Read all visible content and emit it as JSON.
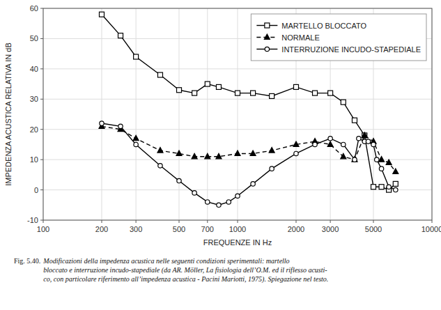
{
  "chart_data": {
    "type": "line",
    "xlabel": "FREQUENZE IN Hz",
    "ylabel": "IMPEDENZA ACUSTICA RELATIVA IN dB",
    "log": "x",
    "grid": true,
    "legend": "upper right",
    "xlim": [
      100,
      10000
    ],
    "xticks": [
      100,
      200,
      300,
      500,
      700,
      1000,
      2000,
      3000,
      5000,
      10000
    ],
    "ylim": [
      -10,
      60
    ],
    "yticks": [
      -10,
      0,
      10,
      20,
      30,
      40,
      50,
      60
    ],
    "series": [
      {
        "name": "MARTELLO BLOCCATO",
        "color": "#000000",
        "marker": "square",
        "line_style": "solid",
        "x": [
          200,
          250,
          300,
          400,
          500,
          600,
          700,
          800,
          1000,
          1200,
          1500,
          2000,
          2500,
          3000,
          3500,
          4000,
          4500,
          5000,
          5500,
          6000,
          6500
        ],
        "values": [
          58,
          51,
          44,
          38,
          33,
          32,
          35,
          34,
          32,
          32,
          31,
          34,
          32,
          32,
          29,
          23,
          18,
          1,
          1,
          0,
          2
        ]
      },
      {
        "name": "NORMALE",
        "color": "#000000",
        "marker": "triangle",
        "line_style": "dashed",
        "x": [
          200,
          250,
          300,
          400,
          500,
          600,
          700,
          800,
          1000,
          1200,
          1500,
          2000,
          2500,
          3000,
          3500,
          4000,
          4500,
          5000,
          5500,
          6000,
          6500
        ],
        "values": [
          21,
          20,
          17,
          13,
          12,
          11,
          11,
          11,
          12,
          12,
          13,
          15,
          16,
          15,
          11,
          10,
          18,
          16,
          10,
          9,
          6
        ]
      },
      {
        "name": "INTERRUZIONE INCUDO-STAPEDIALE",
        "color": "#000000",
        "marker": "circle",
        "line_style": "solid",
        "x": [
          200,
          250,
          300,
          400,
          500,
          600,
          700,
          800,
          900,
          1000,
          1200,
          1500,
          2000,
          2500,
          3000,
          3500,
          4000,
          4200,
          4500,
          4700,
          5000,
          5200,
          5500,
          6000,
          6500
        ],
        "values": [
          22,
          21,
          15,
          8,
          3,
          -1,
          -4,
          -5,
          -4,
          -2,
          2,
          7,
          12,
          15,
          17,
          15,
          10,
          17,
          16,
          16,
          15,
          10,
          7,
          1,
          0
        ]
      }
    ],
    "annotations": [
      "Fig. 5.40.",
      "  Modificazioni della impedenza acustica nelle seguenti condizioni sperimentali: martello\nbloccato e interruzione incudo-stapediale (da AR. Möller, La fisiologia dell’O.M. ed il riflesso acusti-\nco, con particolare riferimento all’impedenza acustica -  Pacini Mariotti, 1975). Spiegazione nel testo."
    ]
  }
}
